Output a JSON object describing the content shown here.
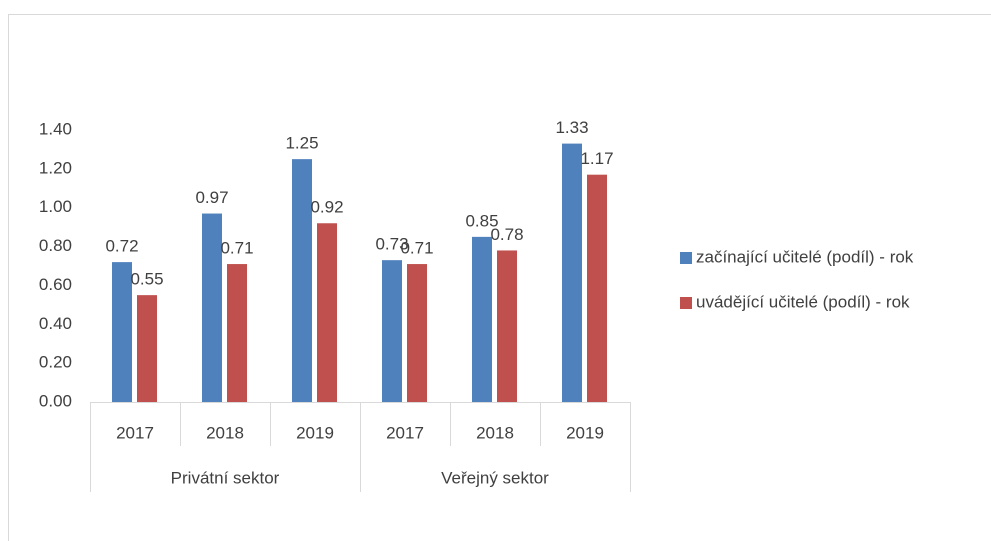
{
  "chart_data": {
    "type": "bar",
    "categories": [
      "2017",
      "2018",
      "2019",
      "2017",
      "2018",
      "2019"
    ],
    "groups": [
      "Privátní sektor",
      "Veřejný sektor"
    ],
    "series": [
      {
        "name": "začínající učitelé (podíl) - rok",
        "color": "#4f81bd",
        "values": [
          0.72,
          0.97,
          1.25,
          0.73,
          0.85,
          1.33
        ]
      },
      {
        "name": "uvádějící učitelé (podíl) - rok",
        "color": "#c0504d",
        "values": [
          0.55,
          0.71,
          0.92,
          0.71,
          0.78,
          1.17
        ]
      }
    ],
    "ylim": [
      0,
      1.4
    ],
    "yticks": [
      {
        "value": 0,
        "label": "0.00"
      },
      {
        "value": 0.2,
        "label": "0.20"
      },
      {
        "value": 0.4,
        "label": "0.40"
      },
      {
        "value": 0.6,
        "label": "0.60"
      },
      {
        "value": 0.8,
        "label": "0.80"
      },
      {
        "value": 1.0,
        "label": "1.00"
      },
      {
        "value": 1.2,
        "label": "1.20"
      },
      {
        "value": 1.4,
        "label": "1.40"
      }
    ],
    "grid": false
  }
}
